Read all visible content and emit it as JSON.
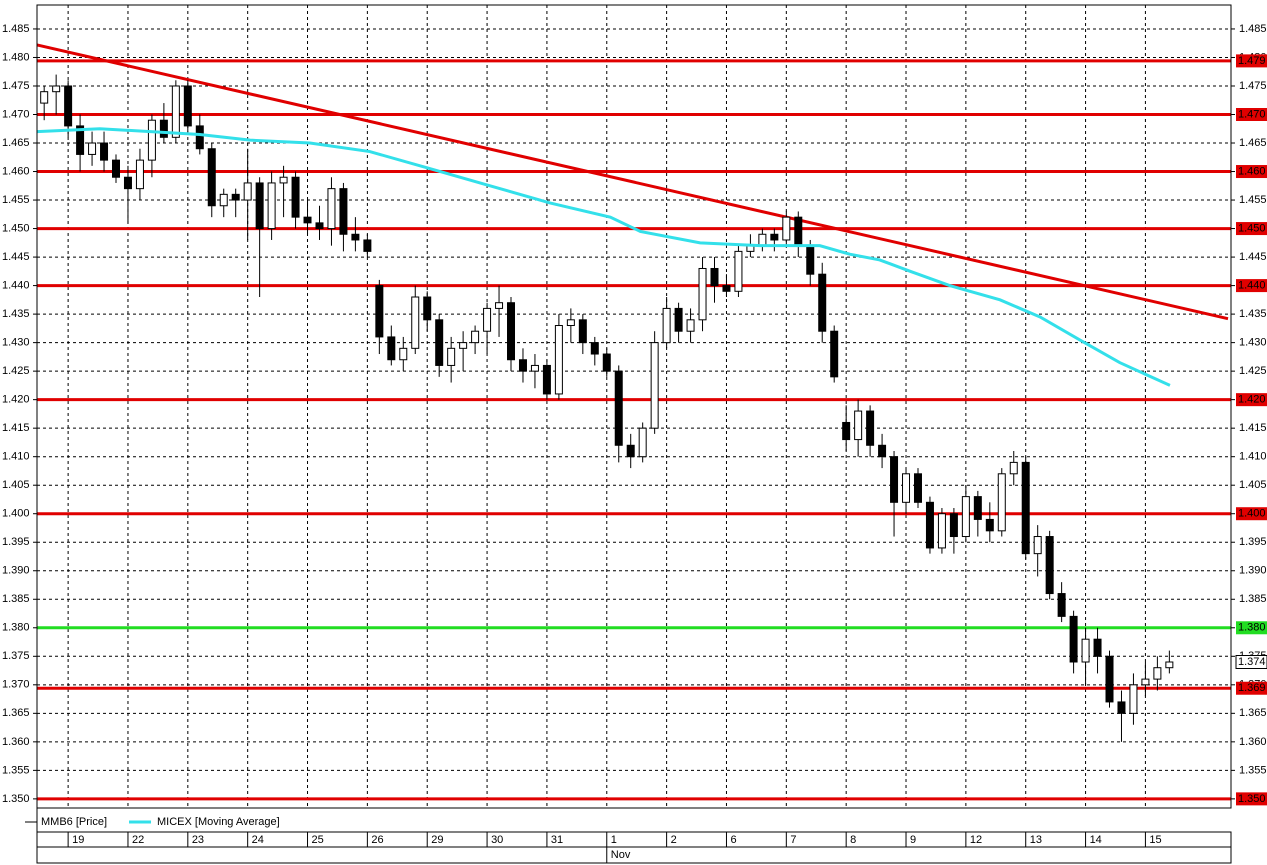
{
  "chart_data": {
    "type": "candlestick",
    "grid": true,
    "xlim": [
      -0.52,
      19.43
    ],
    "ylim": [
      1.3484,
      1.4892
    ],
    "yticks": [
      {
        "value": 1.35,
        "label": "1.350"
      },
      1.355,
      {
        "value": 1.36,
        "label": "1.360"
      },
      1.365,
      {
        "value": 1.37,
        "label": "1.370"
      },
      1.375,
      {
        "value": 1.38,
        "label": "1.380"
      },
      1.385,
      {
        "value": 1.39,
        "label": "1.390"
      },
      1.395,
      {
        "value": 1.4,
        "label": "1.400"
      },
      1.405,
      {
        "value": 1.41,
        "label": "1.410"
      },
      1.415,
      {
        "value": 1.42,
        "label": "1.420"
      },
      1.425,
      {
        "value": 1.43,
        "label": "1.430"
      },
      1.435,
      {
        "value": 1.44,
        "label": "1.440"
      },
      1.445,
      {
        "value": 1.45,
        "label": "1.450"
      },
      1.455,
      {
        "value": 1.46,
        "label": "1.460"
      },
      1.465,
      {
        "value": 1.47,
        "label": "1.470"
      },
      1.475,
      {
        "value": 1.48,
        "label": "1.480"
      },
      1.485
    ],
    "xticks": [
      {
        "value": 0,
        "label": "19"
      },
      {
        "value": 1,
        "label": "22"
      },
      {
        "value": 2,
        "label": "23"
      },
      {
        "value": 3,
        "label": "24"
      },
      {
        "value": 4,
        "label": "25"
      },
      {
        "value": 5,
        "label": "26"
      },
      {
        "value": 6,
        "label": "29"
      },
      {
        "value": 7,
        "label": "30"
      },
      {
        "value": 8,
        "label": "31"
      },
      {
        "value": 9,
        "label": "1"
      },
      {
        "value": 10,
        "label": "2"
      },
      {
        "value": 11,
        "label": "6"
      },
      {
        "value": 12,
        "label": "7"
      },
      {
        "value": 13,
        "label": "8"
      },
      {
        "value": 14,
        "label": "9"
      },
      {
        "value": 15,
        "label": "12"
      },
      {
        "value": 16,
        "label": "13"
      },
      {
        "value": 17,
        "label": "14"
      },
      {
        "value": 18,
        "label": "15"
      }
    ],
    "x_sublabel": {
      "value": 9,
      "label": "Nov"
    },
    "series": [
      {
        "name": "MMB6 [Price]",
        "color": "#000000",
        "x": [
          -0.4,
          -0.2,
          0,
          0.2,
          0.4,
          0.6,
          0.8,
          1,
          1.2,
          1.4,
          1.6,
          1.8,
          2,
          2.2,
          2.4,
          2.6,
          2.8,
          3,
          3.2,
          3.4,
          3.6,
          3.8,
          4,
          4.2,
          4.4,
          4.6,
          4.8,
          5,
          5.2,
          5.4,
          5.6,
          5.8,
          6,
          6.2,
          6.4,
          6.6,
          6.8,
          7,
          7.2,
          7.4,
          7.6,
          7.8,
          8,
          8.2,
          8.4,
          8.6,
          8.8,
          9,
          9.2,
          9.4,
          9.6,
          9.8,
          10,
          10.2,
          10.4,
          10.6,
          10.8,
          11,
          11.2,
          11.4,
          11.6,
          11.8,
          12,
          12.2,
          12.4,
          12.6,
          12.8,
          13,
          13.2,
          13.4,
          13.6,
          13.8,
          14,
          14.2,
          14.4,
          14.6,
          14.8,
          15,
          15.2,
          15.4,
          15.6,
          15.8,
          16,
          16.2,
          16.4,
          16.6,
          16.8,
          17,
          17.2,
          17.4,
          17.6,
          17.8,
          18,
          18.2,
          18.4
        ],
        "ohlc": [
          [
            1.472,
            1.475,
            1.469,
            1.474
          ],
          [
            1.474,
            1.477,
            1.47,
            1.475
          ],
          [
            1.475,
            1.476,
            1.466,
            1.468
          ],
          [
            1.468,
            1.47,
            1.46,
            1.463
          ],
          [
            1.463,
            1.467,
            1.461,
            1.465
          ],
          [
            1.465,
            1.467,
            1.46,
            1.462
          ],
          [
            1.462,
            1.463,
            1.458,
            1.459
          ],
          [
            1.459,
            1.461,
            1.451,
            1.457
          ],
          [
            1.457,
            1.464,
            1.455,
            1.462
          ],
          [
            1.462,
            1.47,
            1.459,
            1.469
          ],
          [
            1.469,
            1.472,
            1.465,
            1.466
          ],
          [
            1.466,
            1.476,
            1.465,
            1.475
          ],
          [
            1.475,
            1.476,
            1.467,
            1.468
          ],
          [
            1.468,
            1.47,
            1.463,
            1.464
          ],
          [
            1.464,
            1.465,
            1.452,
            1.454
          ],
          [
            1.454,
            1.457,
            1.452,
            1.456
          ],
          [
            1.456,
            1.457,
            1.452,
            1.455
          ],
          [
            1.455,
            1.464,
            1.448,
            1.458
          ],
          [
            1.458,
            1.459,
            1.438,
            1.45
          ],
          [
            1.45,
            1.46,
            1.448,
            1.458
          ],
          [
            1.458,
            1.461,
            1.452,
            1.459
          ],
          [
            1.459,
            1.46,
            1.45,
            1.452
          ],
          [
            1.452,
            1.455,
            1.449,
            1.451
          ],
          [
            1.451,
            1.454,
            1.448,
            1.45
          ],
          [
            1.45,
            1.459,
            1.447,
            1.457
          ],
          [
            1.457,
            1.458,
            1.446,
            1.449
          ],
          [
            1.449,
            1.452,
            1.446,
            1.448
          ],
          [
            1.448,
            1.449,
            1.445,
            1.446
          ],
          [
            1.44,
            1.441,
            1.428,
            1.431
          ],
          [
            1.431,
            1.433,
            1.426,
            1.427
          ],
          [
            1.427,
            1.431,
            1.425,
            1.429
          ],
          [
            1.429,
            1.44,
            1.428,
            1.438
          ],
          [
            1.438,
            1.439,
            1.432,
            1.434
          ],
          [
            1.434,
            1.435,
            1.424,
            1.426
          ],
          [
            1.426,
            1.431,
            1.423,
            1.429
          ],
          [
            1.429,
            1.432,
            1.425,
            1.43
          ],
          [
            1.43,
            1.433,
            1.428,
            1.432
          ],
          [
            1.432,
            1.437,
            1.428,
            1.436
          ],
          [
            1.436,
            1.44,
            1.431,
            1.437
          ],
          [
            1.437,
            1.438,
            1.425,
            1.427
          ],
          [
            1.427,
            1.429,
            1.423,
            1.425
          ],
          [
            1.425,
            1.428,
            1.422,
            1.426
          ],
          [
            1.426,
            1.427,
            1.42,
            1.421
          ],
          [
            1.421,
            1.435,
            1.42,
            1.433
          ],
          [
            1.433,
            1.436,
            1.43,
            1.434
          ],
          [
            1.434,
            1.435,
            1.428,
            1.43
          ],
          [
            1.43,
            1.431,
            1.426,
            1.428
          ],
          [
            1.428,
            1.429,
            1.424,
            1.425
          ],
          [
            1.425,
            1.426,
            1.409,
            1.412
          ],
          [
            1.412,
            1.414,
            1.408,
            1.41
          ],
          [
            1.41,
            1.416,
            1.409,
            1.415
          ],
          [
            1.415,
            1.432,
            1.414,
            1.43
          ],
          [
            1.43,
            1.438,
            1.429,
            1.436
          ],
          [
            1.436,
            1.437,
            1.43,
            1.432
          ],
          [
            1.432,
            1.436,
            1.43,
            1.434
          ],
          [
            1.434,
            1.445,
            1.432,
            1.443
          ],
          [
            1.443,
            1.445,
            1.437,
            1.44
          ],
          [
            1.44,
            1.442,
            1.438,
            1.439
          ],
          [
            1.439,
            1.447,
            1.438,
            1.446
          ],
          [
            1.446,
            1.449,
            1.445,
            1.447
          ],
          [
            1.447,
            1.45,
            1.446,
            1.449
          ],
          [
            1.449,
            1.45,
            1.446,
            1.448
          ],
          [
            1.448,
            1.453,
            1.447,
            1.452
          ],
          [
            1.452,
            1.453,
            1.445,
            1.447
          ],
          [
            1.447,
            1.448,
            1.44,
            1.442
          ],
          [
            1.442,
            1.444,
            1.43,
            1.432
          ],
          [
            1.432,
            1.433,
            1.423,
            1.424
          ],
          [
            1.416,
            1.419,
            1.411,
            1.413
          ],
          [
            1.413,
            1.42,
            1.41,
            1.418
          ],
          [
            1.418,
            1.419,
            1.41,
            1.412
          ],
          [
            1.412,
            1.414,
            1.408,
            1.41
          ],
          [
            1.41,
            1.411,
            1.396,
            1.402
          ],
          [
            1.402,
            1.408,
            1.4,
            1.407
          ],
          [
            1.407,
            1.408,
            1.401,
            1.402
          ],
          [
            1.402,
            1.403,
            1.393,
            1.394
          ],
          [
            1.394,
            1.401,
            1.393,
            1.4
          ],
          [
            1.4,
            1.401,
            1.393,
            1.396
          ],
          [
            1.396,
            1.405,
            1.395,
            1.403
          ],
          [
            1.403,
            1.404,
            1.396,
            1.399
          ],
          [
            1.399,
            1.402,
            1.395,
            1.397
          ],
          [
            1.397,
            1.408,
            1.396,
            1.407
          ],
          [
            1.407,
            1.411,
            1.405,
            1.409
          ],
          [
            1.409,
            1.41,
            1.392,
            1.393
          ],
          [
            1.393,
            1.398,
            1.389,
            1.396
          ],
          [
            1.396,
            1.397,
            1.385,
            1.386
          ],
          [
            1.386,
            1.388,
            1.381,
            1.382
          ],
          [
            1.382,
            1.383,
            1.372,
            1.374
          ],
          [
            1.374,
            1.38,
            1.37,
            1.378
          ],
          [
            1.378,
            1.38,
            1.372,
            1.375
          ],
          [
            1.375,
            1.376,
            1.366,
            1.367
          ],
          [
            1.367,
            1.369,
            1.36,
            1.365
          ],
          [
            1.365,
            1.372,
            1.363,
            1.37
          ],
          [
            1.37,
            1.374,
            1.368,
            1.371
          ],
          [
            1.371,
            1.375,
            1.369,
            1.373
          ],
          [
            1.373,
            1.376,
            1.372,
            1.374
          ]
        ]
      },
      {
        "name": "MICEX [Moving Average]",
        "type": "line",
        "color": "#33e0ea",
        "x": [
          -0.52,
          0.53,
          2.2,
          3.04,
          4.04,
          5.04,
          6.05,
          7.05,
          8.05,
          9.06,
          9.56,
          10.56,
          11.56,
          12.56,
          13.06,
          13.56,
          14.07,
          14.73,
          15.57,
          16.24,
          16.9,
          17.57,
          18.41
        ],
        "values": [
          1.467,
          1.4675,
          1.4665,
          1.4655,
          1.465,
          1.4635,
          1.4605,
          1.4575,
          1.4545,
          1.452,
          1.4495,
          1.4475,
          1.447,
          1.447,
          1.4455,
          1.4445,
          1.4425,
          1.44,
          1.4375,
          1.4345,
          1.4305,
          1.4265,
          1.4225
        ]
      }
    ],
    "trend_line": {
      "x": [
        -0.52,
        19.38
      ],
      "values": [
        1.4822,
        1.4342
      ],
      "color": "#e00000"
    },
    "levels": [
      {
        "value": 1.4794,
        "label": "1.479",
        "color": "#e00000"
      },
      {
        "value": 1.47,
        "label": "1.470",
        "color": "#e00000"
      },
      {
        "value": 1.46,
        "label": "1.460",
        "color": "#e00000"
      },
      {
        "value": 1.45,
        "label": "1.450",
        "color": "#e00000"
      },
      {
        "value": 1.44,
        "label": "1.440",
        "color": "#e00000"
      },
      {
        "value": 1.42,
        "label": "1.420",
        "color": "#e00000"
      },
      {
        "value": 1.4,
        "label": "1.400",
        "color": "#e00000"
      },
      {
        "value": 1.38,
        "label": "1.380",
        "color": "#22dd22"
      },
      {
        "value": 1.3694,
        "label": "1.369",
        "color": "#e00000"
      },
      {
        "value": 1.35,
        "label": "1.350",
        "color": "#e00000"
      }
    ],
    "last_price": 1.374
  }
}
